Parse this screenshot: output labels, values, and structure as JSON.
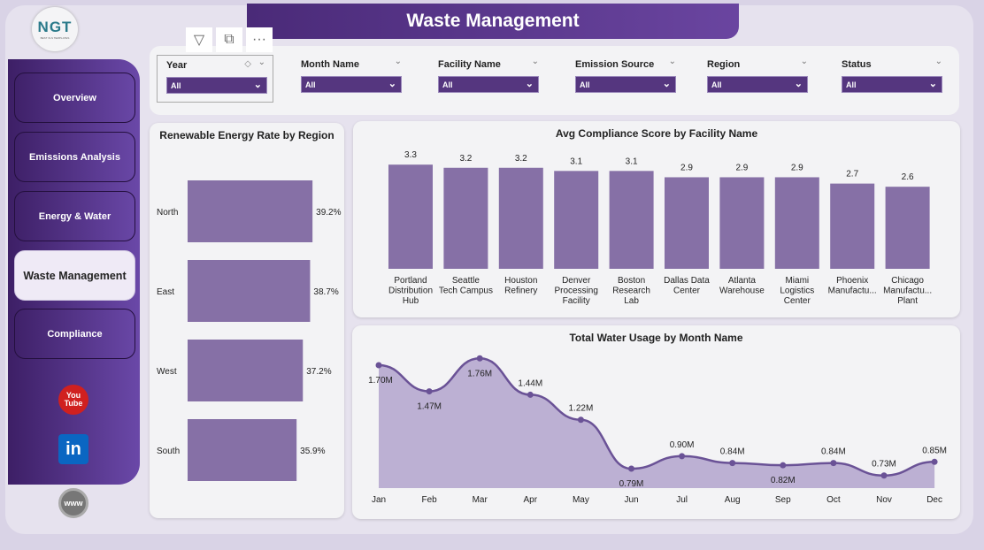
{
  "logo": {
    "text": "NGT",
    "tagline": "BEST XLS TEMPLATES"
  },
  "header": {
    "title": "Waste Management"
  },
  "visual_toolbar": {
    "filter_icon": "filter-icon",
    "focus_icon": "focus-mode-icon",
    "more_icon": "more-options-icon"
  },
  "sidebar": {
    "items": [
      {
        "label": "Overview"
      },
      {
        "label": "Emissions Analysis"
      },
      {
        "label": "Energy & Water"
      },
      {
        "label": "Waste Management",
        "active": true
      },
      {
        "label": "Compliance"
      }
    ],
    "social": [
      {
        "icon": "youtube-icon",
        "text": "You Tube"
      },
      {
        "icon": "linkedin-icon",
        "text": "in"
      },
      {
        "icon": "website-icon",
        "text": "www"
      }
    ]
  },
  "filters": [
    {
      "label": "Year",
      "value": "All"
    },
    {
      "label": "Month Name",
      "value": "All"
    },
    {
      "label": "Facility Name",
      "value": "All"
    },
    {
      "label": "Emission Source",
      "value": "All"
    },
    {
      "label": "Region",
      "value": "All"
    },
    {
      "label": "Status",
      "value": "All"
    }
  ],
  "colors": {
    "accent": "#55367f",
    "bar": "#8670a6",
    "area": "#bcb0d3",
    "line": "#6a5296"
  },
  "chart_data": [
    {
      "type": "bar",
      "orientation": "horizontal",
      "title": "Renewable Energy Rate by Region",
      "categories": [
        "North",
        "East",
        "West",
        "South"
      ],
      "values": [
        39.2,
        38.7,
        37.2,
        35.9
      ],
      "labels": [
        "39.2%",
        "38.7%",
        "37.2%",
        "35.9%"
      ]
    },
    {
      "type": "bar",
      "title": "Avg Compliance Score by Facility Name",
      "categories": [
        "Portland Distribution Hub",
        "Seattle Tech Campus",
        "Houston Refinery",
        "Denver Processing Facility",
        "Boston Research Lab",
        "Dallas Data Center",
        "Atlanta Warehouse",
        "Miami Logistics Center",
        "Phoenix Manufactu...",
        "Chicago Manufactu... Plant"
      ],
      "values": [
        3.3,
        3.2,
        3.2,
        3.1,
        3.1,
        2.9,
        2.9,
        2.9,
        2.7,
        2.6
      ],
      "labels": [
        "3.3",
        "3.2",
        "3.2",
        "3.1",
        "3.1",
        "2.9",
        "2.9",
        "2.9",
        "2.7",
        "2.6"
      ],
      "ylim": [
        0,
        3.3
      ]
    },
    {
      "type": "area",
      "title": "Total Water Usage by Month Name",
      "categories": [
        "Jan",
        "Feb",
        "Mar",
        "Apr",
        "May",
        "Jun",
        "Jul",
        "Aug",
        "Sep",
        "Oct",
        "Nov",
        "Dec"
      ],
      "values": [
        1.7,
        1.47,
        1.76,
        1.44,
        1.22,
        0.79,
        0.9,
        0.84,
        0.82,
        0.84,
        0.73,
        0.85
      ],
      "labels": [
        "1.70M",
        "1.47M",
        "1.76M",
        "1.44M",
        "1.22M",
        "0.79M",
        "0.90M",
        "0.84M",
        "0.82M",
        "0.84M",
        "0.73M",
        "0.85M"
      ],
      "unit": "M"
    }
  ]
}
